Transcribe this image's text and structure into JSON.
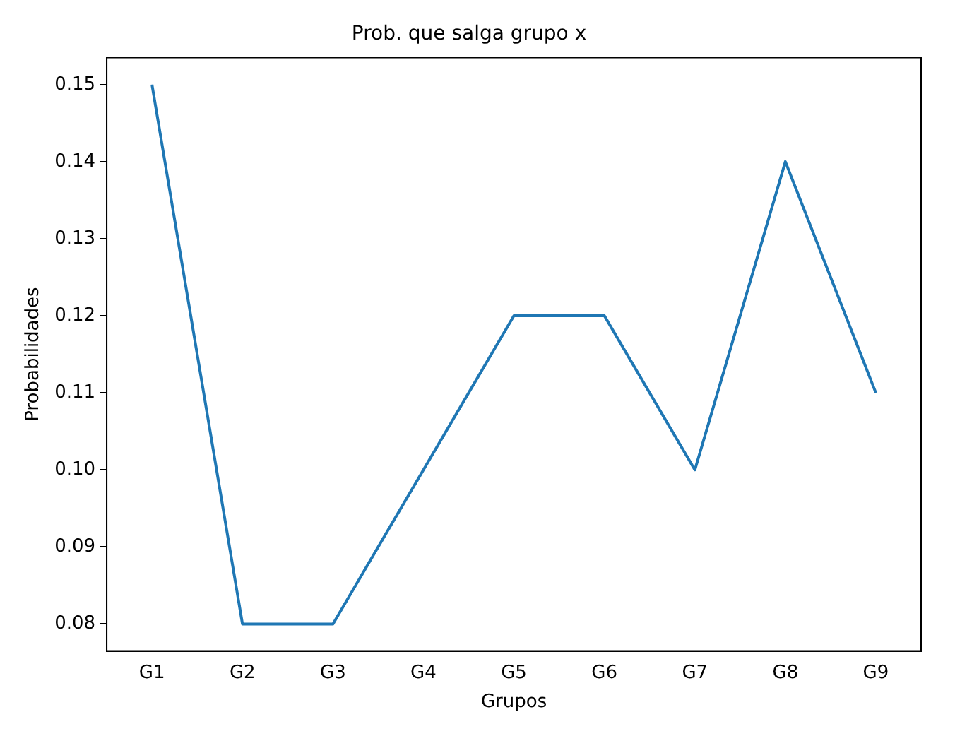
{
  "chart_data": {
    "type": "line",
    "title": "Prob. que salga grupo x",
    "xlabel": "Grupos",
    "ylabel": "Probabilidades",
    "categories": [
      "G1",
      "G2",
      "G3",
      "G4",
      "G5",
      "G6",
      "G7",
      "G8",
      "G9"
    ],
    "series": [
      {
        "color": "#1f77b4",
        "values": [
          0.15,
          0.08,
          0.08,
          0.1,
          0.12,
          0.12,
          0.1,
          0.14,
          0.11
        ]
      }
    ],
    "ylim": [
      0.0765,
      0.1535
    ],
    "yticks": [
      {
        "value": 0.08,
        "label": "0.08"
      },
      {
        "value": 0.09,
        "label": "0.09"
      },
      {
        "value": 0.1,
        "label": "0.10"
      },
      {
        "value": 0.11,
        "label": "0.11"
      },
      {
        "value": 0.12,
        "label": "0.12"
      },
      {
        "value": 0.13,
        "label": "0.13"
      },
      {
        "value": 0.14,
        "label": "0.14"
      },
      {
        "value": 0.15,
        "label": "0.15"
      }
    ],
    "grid": false,
    "legend": false,
    "marker": "none",
    "line_style": "solid"
  }
}
